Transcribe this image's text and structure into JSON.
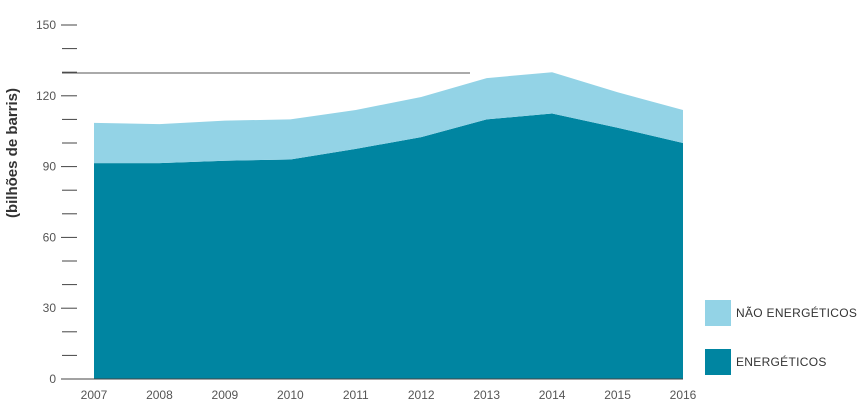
{
  "chart_data": {
    "type": "area",
    "stacked": true,
    "title": "",
    "xlabel": "",
    "ylabel": "(bilhões de barris)",
    "x": [
      "2007",
      "2008",
      "2009",
      "2010",
      "2011",
      "2012",
      "2013",
      "2014",
      "2015",
      "2016"
    ],
    "ylim": [
      0,
      150
    ],
    "yticks": [
      0,
      30,
      60,
      90,
      120,
      150
    ],
    "grid": false,
    "legend_position": "right",
    "series": [
      {
        "name": "ENERGÉTICOS",
        "color": "#0085A1",
        "values": [
          91.5,
          91.5,
          92.5,
          93,
          97.5,
          102.5,
          110,
          112.5,
          106.5,
          100
        ]
      },
      {
        "name": "NÃO ENERGÉTICOS",
        "color": "#93D3E6",
        "values": [
          17,
          16.5,
          17,
          17,
          16.5,
          17,
          17.5,
          17.5,
          15,
          14
        ]
      }
    ],
    "legend": [
      {
        "label": "NÃO ENERGÉTICOS",
        "color": "#93D3E6"
      },
      {
        "label": "ENERGÉTICOS",
        "color": "#0085A1"
      }
    ]
  }
}
